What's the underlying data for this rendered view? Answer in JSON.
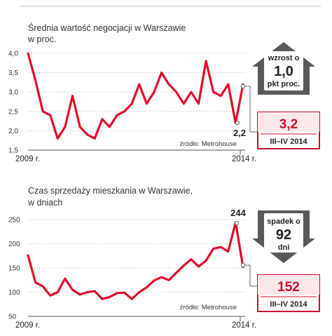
{
  "chart_data": [
    {
      "type": "line",
      "title": "Średnia wartość negocjacji w Warszawie",
      "subtitle": "w proc.",
      "ylim": [
        1.5,
        4.0
      ],
      "y_ticks": [
        "4,0",
        "3,5",
        "3,0",
        "2,5",
        "2,0",
        "1,5"
      ],
      "y_tick_values": [
        4.0,
        3.5,
        3.0,
        2.5,
        2.0,
        1.5
      ],
      "x_start_label": "2009 r.",
      "x_end_label": "2014 r.",
      "grid": true,
      "source": "źródło: Metrohouse",
      "line_color": "#e30b2b",
      "values": [
        4.0,
        3.3,
        2.5,
        2.4,
        1.8,
        2.1,
        2.9,
        2.1,
        1.9,
        1.8,
        2.3,
        2.1,
        2.4,
        2.5,
        2.7,
        3.2,
        2.7,
        3.0,
        3.5,
        3.2,
        3.0,
        2.7,
        3.0,
        2.7,
        3.8,
        3.0,
        2.9,
        3.2,
        2.2,
        3.2
      ],
      "last_low_label": "2,2",
      "badge": {
        "line1": "wzrost o",
        "line2": "1,0",
        "line3": "pkt proc."
      },
      "current": {
        "value": "3,2",
        "period": "III–IV 2014"
      }
    },
    {
      "type": "line",
      "title": "Czas sprzedaży mieszkania w Warszawie,",
      "subtitle": "w dniach",
      "ylim": [
        50,
        250
      ],
      "y_ticks": [
        "250",
        "200",
        "150",
        "100",
        "50"
      ],
      "y_tick_values": [
        250,
        200,
        150,
        100,
        50
      ],
      "x_start_label": "2009 r.",
      "x_end_label": "2014 r.",
      "grid": true,
      "source": "źródło: Metrohouse",
      "line_color": "#e30b2b",
      "values": [
        176,
        120,
        112,
        93,
        100,
        128,
        105,
        95,
        100,
        102,
        86,
        90,
        98,
        99,
        86,
        100,
        110,
        124,
        131,
        125,
        140,
        155,
        168,
        153,
        165,
        190,
        193,
        184,
        244,
        152
      ],
      "peak_label": "244",
      "badge": {
        "line1": "spadek o",
        "line2": "92",
        "line3": "dni"
      },
      "current": {
        "value": "152",
        "period": "III–IV 2014"
      }
    }
  ]
}
